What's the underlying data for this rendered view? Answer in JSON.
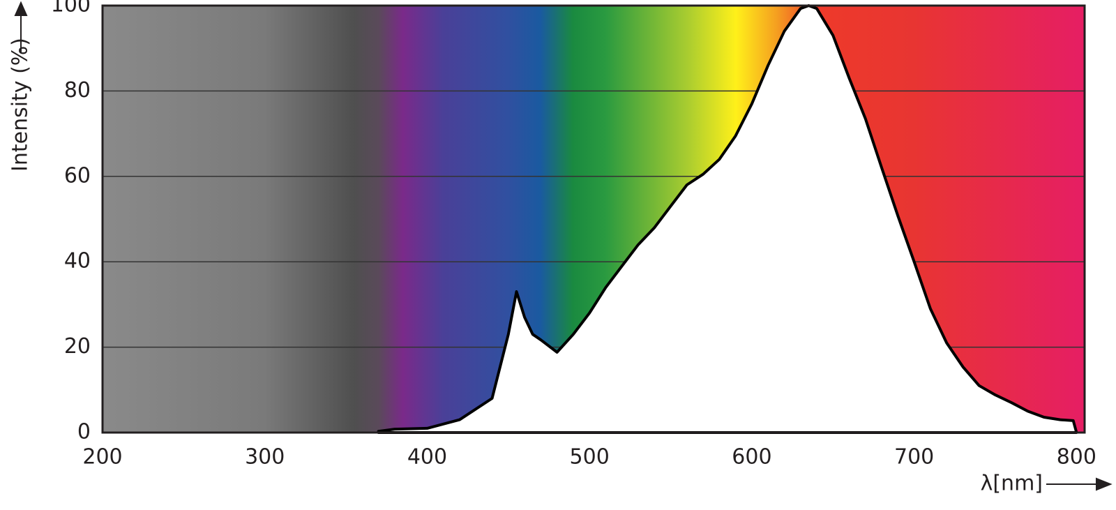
{
  "chart_data": {
    "type": "area",
    "y_label": "Intensity (%)",
    "x_label": "λ[nm]",
    "x": [
      370,
      380,
      400,
      420,
      440,
      450,
      455,
      460,
      465,
      470,
      480,
      490,
      500,
      510,
      520,
      530,
      540,
      550,
      560,
      570,
      580,
      590,
      600,
      610,
      620,
      630,
      635,
      640,
      650,
      660,
      670,
      680,
      690,
      700,
      710,
      720,
      730,
      740,
      750,
      760,
      770,
      780,
      790,
      798,
      800
    ],
    "values": [
      0.3,
      0.8,
      1,
      3,
      8,
      23,
      33,
      27,
      23,
      21.7,
      18.8,
      23,
      28,
      34,
      39,
      44,
      48,
      53,
      58,
      60.5,
      64,
      69.5,
      77,
      86,
      94,
      99.3,
      100,
      99.3,
      93,
      83,
      73.5,
      62,
      50.7,
      40,
      29,
      21,
      15.4,
      11,
      8.8,
      7,
      5,
      3.6,
      3,
      2.8,
      0
    ],
    "color": "#000000",
    "fill": "#ffffff",
    "xlim": [
      200,
      805
    ],
    "ylim": [
      0,
      100
    ],
    "xticks": [
      200,
      300,
      400,
      500,
      600,
      700,
      800
    ],
    "yticks": [
      0,
      20,
      40,
      60,
      80,
      100
    ],
    "grid": true
  }
}
